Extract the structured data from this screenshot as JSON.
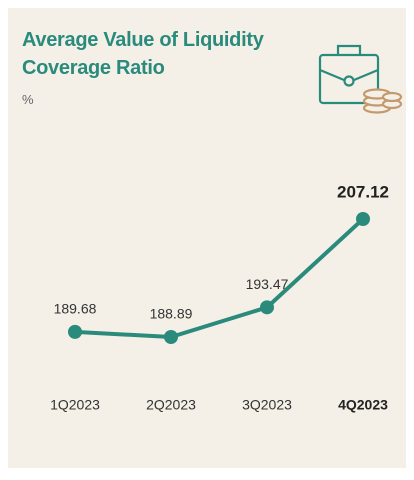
{
  "chart_data": {
    "type": "line",
    "title": "Average Value of Liquidity Coverage Ratio",
    "subtitle": "%",
    "categories": [
      "1Q2023",
      "2Q2023",
      "3Q2023",
      "4Q2023"
    ],
    "series": [
      {
        "name": "Average Value of Liquidity Coverage Ratio",
        "color": "#2a8a7b",
        "values": [
          189.68,
          188.89,
          193.47,
          207.12
        ]
      }
    ],
    "highlight": 3,
    "grid": false
  }
}
